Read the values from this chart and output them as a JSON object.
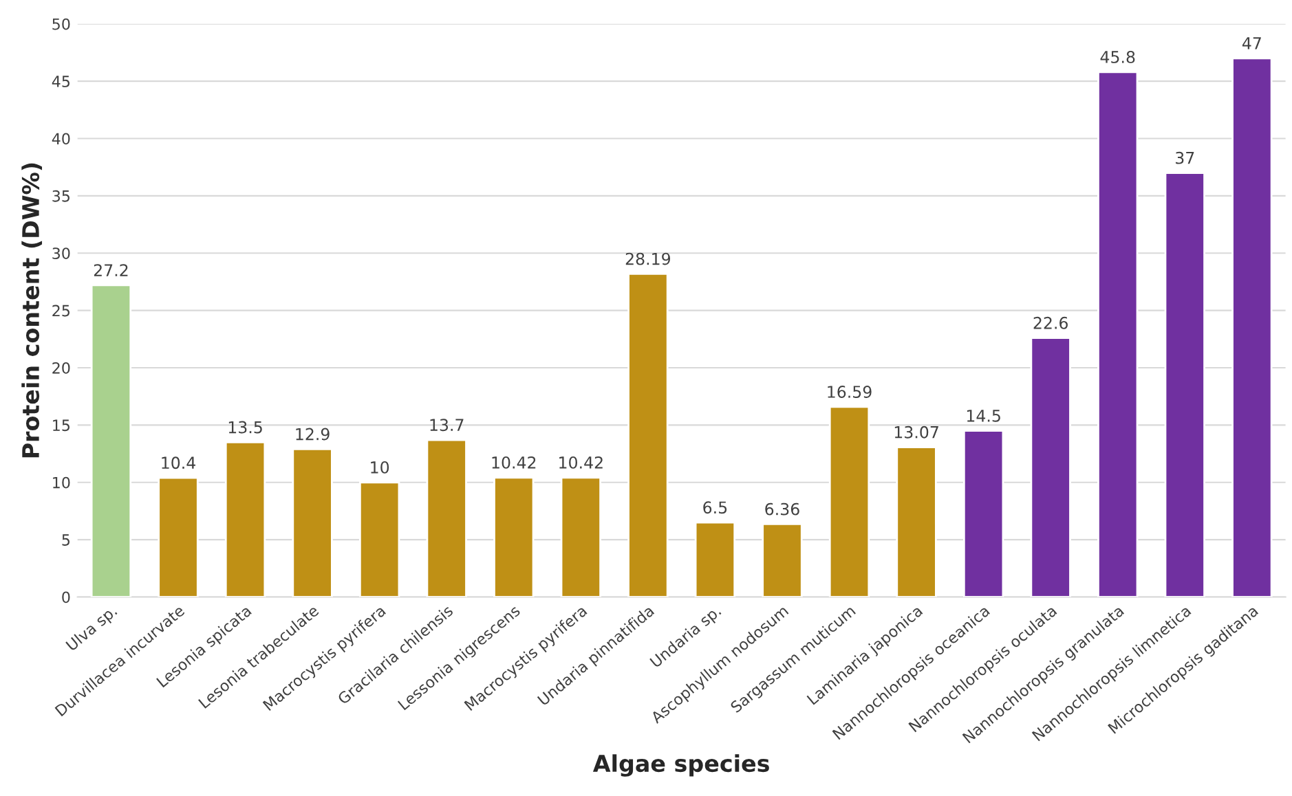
{
  "chart_data": {
    "type": "bar",
    "xlabel": "Algae species",
    "ylabel": "Protein content (DW%)",
    "categories": [
      "Ulva sp.",
      "Durvillacea incurvate",
      "Lesonia spicata",
      "Lesonia trabeculate",
      "Macrocystis pyrifera",
      "Gracilaria chilensis",
      "Lessonia nigrescens",
      "Macrocystis pyrifera",
      "Undaria pinnatifida",
      "Undaria sp.",
      "Ascophyllum nodosum",
      "Sargassum muticum",
      "Laminaria japonica",
      "Nannochloropsis oceanica",
      "Nannochloropsis oculata",
      "Nannochloropsis granulata",
      "Nannochloropsis limnetica",
      "Microchloropsis gaditana"
    ],
    "values": [
      27.2,
      10.4,
      13.5,
      12.9,
      10,
      13.7,
      10.42,
      10.42,
      28.19,
      6.5,
      6.36,
      16.59,
      13.07,
      14.5,
      22.6,
      45.8,
      37,
      47
    ],
    "colors": [
      "#a9d18e",
      "#bf9015",
      "#bf9015",
      "#bf9015",
      "#bf9015",
      "#bf9015",
      "#bf9015",
      "#bf9015",
      "#bf9015",
      "#bf9015",
      "#bf9015",
      "#bf9015",
      "#bf9015",
      "#7030a0",
      "#7030a0",
      "#7030a0",
      "#7030a0",
      "#7030a0"
    ],
    "ylim": [
      0,
      50
    ],
    "yticks": [
      0,
      5,
      10,
      15,
      20,
      25,
      30,
      35,
      40,
      45,
      50
    ],
    "grid": "y",
    "data_labels": true
  }
}
